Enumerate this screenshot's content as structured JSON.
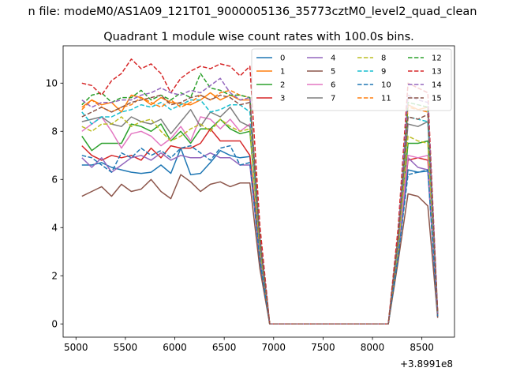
{
  "figure": {
    "suptitle": "n file: modeM0/AS1A09_121T01_9000005136_35773cztM0_level2_quad_clean",
    "offset_label": "+3.8991e8"
  },
  "chart_data": {
    "type": "line",
    "title": "Quadrant 1 module wise count rates with 100.0s bins.",
    "xlabel": "",
    "ylabel": "",
    "x_offset_label": "+3.8991e8",
    "xlim": [
      4870,
      8830
    ],
    "ylim": [
      -0.55,
      11.55
    ],
    "xticks": [
      5000,
      5500,
      6000,
      6500,
      7000,
      7500,
      8000,
      8500
    ],
    "yticks": [
      0,
      2,
      4,
      6,
      8,
      10
    ],
    "grid": false,
    "legend_position": "top-right",
    "legend_columns": 4,
    "x": [
      5060,
      5160,
      5260,
      5360,
      5460,
      5560,
      5660,
      5760,
      5860,
      5960,
      6060,
      6160,
      6260,
      6360,
      6460,
      6560,
      6660,
      6760,
      6860,
      6960,
      7060,
      7160,
      7260,
      7360,
      7460,
      7560,
      7660,
      7760,
      7860,
      7960,
      8060,
      8160,
      8260,
      8360,
      8460,
      8560,
      8660
    ],
    "series": [
      {
        "name": "0",
        "color": "#1f77b4",
        "dash": "solid",
        "values": [
          6.6,
          6.6,
          6.7,
          6.5,
          6.4,
          6.3,
          6.25,
          6.3,
          6.6,
          6.25,
          7.3,
          6.2,
          6.25,
          6.7,
          7.2,
          7.0,
          6.9,
          6.95,
          2.6,
          0,
          0,
          0,
          0,
          0,
          0,
          0,
          0,
          0,
          0,
          0,
          0,
          0,
          2.9,
          6.4,
          6.3,
          6.35,
          0.3
        ]
      },
      {
        "name": "1",
        "color": "#ff7f0e",
        "dash": "solid",
        "values": [
          9.0,
          9.3,
          9.1,
          9.2,
          8.8,
          9.5,
          9.4,
          9.1,
          9.4,
          9.2,
          9.15,
          9.1,
          9.3,
          9.6,
          9.3,
          9.5,
          9.3,
          9.3,
          3.6,
          0,
          0,
          0,
          0,
          0,
          0,
          0,
          0,
          0,
          0,
          0,
          0,
          0,
          3.5,
          9.1,
          8.9,
          9.0,
          0.4
        ]
      },
      {
        "name": "2",
        "color": "#2ca02c",
        "dash": "solid",
        "values": [
          7.8,
          7.2,
          7.5,
          7.5,
          7.5,
          8.3,
          8.2,
          8.0,
          8.3,
          7.6,
          8.0,
          7.5,
          8.1,
          8.1,
          8.5,
          8.1,
          7.9,
          8.0,
          3.1,
          0,
          0,
          0,
          0,
          0,
          0,
          0,
          0,
          0,
          0,
          0,
          0,
          0,
          3.1,
          7.5,
          7.5,
          7.6,
          0.35
        ]
      },
      {
        "name": "3",
        "color": "#d62728",
        "dash": "solid",
        "values": [
          7.4,
          7.0,
          6.8,
          7.0,
          6.9,
          7.0,
          6.8,
          7.3,
          6.9,
          7.4,
          7.3,
          7.3,
          7.5,
          8.1,
          7.6,
          7.6,
          7.6,
          7.0,
          2.8,
          0,
          0,
          0,
          0,
          0,
          0,
          0,
          0,
          0,
          0,
          0,
          0,
          0,
          3.0,
          6.8,
          6.9,
          6.8,
          0.3
        ]
      },
      {
        "name": "4",
        "color": "#9467bd",
        "dash": "solid",
        "values": [
          6.9,
          6.5,
          6.9,
          6.3,
          6.6,
          6.9,
          7.0,
          6.8,
          7.1,
          6.8,
          7.0,
          6.9,
          6.9,
          7.1,
          6.9,
          6.9,
          6.6,
          6.6,
          2.7,
          0,
          0,
          0,
          0,
          0,
          0,
          0,
          0,
          0,
          0,
          0,
          0,
          0,
          2.9,
          6.9,
          6.5,
          6.4,
          0.3
        ]
      },
      {
        "name": "5",
        "color": "#8c564b",
        "dash": "solid",
        "values": [
          5.3,
          5.5,
          5.7,
          5.3,
          5.8,
          5.5,
          5.6,
          6.0,
          5.5,
          5.2,
          6.2,
          5.9,
          5.5,
          5.8,
          5.9,
          5.7,
          5.85,
          5.85,
          2.3,
          0,
          0,
          0,
          0,
          0,
          0,
          0,
          0,
          0,
          0,
          0,
          0,
          0,
          2.6,
          5.4,
          5.3,
          4.9,
          0.25
        ]
      },
      {
        "name": "6",
        "color": "#e377c2",
        "dash": "solid",
        "values": [
          8.0,
          8.3,
          8.6,
          8.0,
          7.3,
          7.9,
          8.0,
          7.8,
          7.4,
          7.7,
          8.2,
          7.6,
          8.6,
          8.5,
          8.1,
          8.5,
          8.0,
          8.3,
          3.2,
          0,
          0,
          0,
          0,
          0,
          0,
          0,
          0,
          0,
          0,
          0,
          0,
          0,
          3.2,
          7.0,
          6.9,
          7.0,
          0.35
        ]
      },
      {
        "name": "7",
        "color": "#7f7f7f",
        "dash": "solid",
        "values": [
          8.4,
          8.5,
          8.6,
          8.3,
          8.2,
          8.6,
          8.4,
          8.3,
          8.5,
          7.9,
          8.4,
          8.9,
          8.2,
          8.8,
          8.6,
          9.0,
          8.4,
          8.2,
          3.3,
          0,
          0,
          0,
          0,
          0,
          0,
          0,
          0,
          0,
          0,
          0,
          0,
          0,
          3.3,
          8.3,
          8.2,
          8.4,
          0.4
        ]
      },
      {
        "name": "8",
        "color": "#bcbd22",
        "dash": "dashed",
        "values": [
          8.2,
          8.0,
          8.3,
          8.3,
          8.6,
          8.2,
          8.4,
          8.5,
          8.0,
          7.6,
          7.8,
          8.1,
          8.3,
          8.0,
          8.5,
          8.2,
          8.0,
          8.1,
          3.1,
          0,
          0,
          0,
          0,
          0,
          0,
          0,
          0,
          0,
          0,
          0,
          0,
          0,
          3.1,
          7.8,
          7.6,
          7.5,
          0.35
        ]
      },
      {
        "name": "9",
        "color": "#17becf",
        "dash": "dashed",
        "values": [
          8.8,
          8.3,
          8.6,
          8.6,
          8.8,
          8.9,
          9.1,
          9.0,
          9.2,
          8.9,
          9.1,
          9.3,
          9.3,
          8.8,
          8.9,
          9.1,
          9.1,
          8.8,
          3.4,
          0,
          0,
          0,
          0,
          0,
          0,
          0,
          0,
          0,
          0,
          0,
          0,
          0,
          3.4,
          8.6,
          8.5,
          8.4,
          0.4
        ]
      },
      {
        "name": "10",
        "color": "#1f77b4",
        "dash": "dashed",
        "values": [
          7.0,
          6.9,
          6.6,
          6.3,
          7.1,
          6.9,
          7.3,
          7.0,
          7.2,
          6.9,
          7.3,
          7.4,
          7.1,
          6.8,
          7.3,
          7.4,
          6.6,
          6.7,
          2.7,
          0,
          0,
          0,
          0,
          0,
          0,
          0,
          0,
          0,
          0,
          0,
          0,
          0,
          2.8,
          6.2,
          6.3,
          6.4,
          0.3
        ]
      },
      {
        "name": "11",
        "color": "#ff7f0e",
        "dash": "dashed",
        "values": [
          8.9,
          9.3,
          9.0,
          8.8,
          9.0,
          9.1,
          9.4,
          9.2,
          9.0,
          9.3,
          9.0,
          9.2,
          9.5,
          9.3,
          9.6,
          9.7,
          9.5,
          9.4,
          3.6,
          0,
          0,
          0,
          0,
          0,
          0,
          0,
          0,
          0,
          0,
          0,
          0,
          0,
          3.6,
          9.0,
          8.9,
          8.8,
          0.4
        ]
      },
      {
        "name": "12",
        "color": "#2ca02c",
        "dash": "dashed",
        "values": [
          9.1,
          9.5,
          9.6,
          9.2,
          9.4,
          9.4,
          9.7,
          9.3,
          9.5,
          9.3,
          9.6,
          9.4,
          10.4,
          9.8,
          9.7,
          9.5,
          9.5,
          9.4,
          3.6,
          0,
          0,
          0,
          0,
          0,
          0,
          0,
          0,
          0,
          0,
          0,
          0,
          0,
          3.7,
          9.2,
          9.1,
          9.0,
          0.4
        ]
      },
      {
        "name": "13",
        "color": "#d62728",
        "dash": "dashed",
        "values": [
          10.0,
          9.9,
          9.5,
          10.1,
          10.4,
          11.0,
          10.6,
          10.8,
          10.4,
          9.6,
          10.2,
          10.5,
          10.7,
          10.6,
          10.8,
          10.7,
          10.3,
          10.7,
          4.1,
          0,
          0,
          0,
          0,
          0,
          0,
          0,
          0,
          0,
          0,
          0,
          0,
          0,
          4.0,
          10.0,
          9.8,
          9.6,
          0.45
        ]
      },
      {
        "name": "14",
        "color": "#9467bd",
        "dash": "dashed",
        "values": [
          9.3,
          9.0,
          9.2,
          9.2,
          9.3,
          9.3,
          9.5,
          9.6,
          9.8,
          9.6,
          9.5,
          9.7,
          9.6,
          9.9,
          10.2,
          9.6,
          9.3,
          9.4,
          3.6,
          0,
          0,
          0,
          0,
          0,
          0,
          0,
          0,
          0,
          0,
          0,
          0,
          0,
          3.6,
          9.5,
          9.3,
          9.2,
          0.4
        ]
      },
      {
        "name": "15",
        "color": "#8c564b",
        "dash": "dashed",
        "values": [
          8.6,
          8.8,
          9.0,
          8.8,
          9.0,
          9.2,
          9.3,
          9.4,
          9.5,
          9.1,
          9.2,
          9.4,
          9.5,
          9.3,
          9.5,
          9.4,
          9.1,
          9.2,
          3.5,
          0,
          0,
          0,
          0,
          0,
          0,
          0,
          0,
          0,
          0,
          0,
          0,
          0,
          3.5,
          8.6,
          8.5,
          8.7,
          0.4
        ]
      }
    ]
  }
}
